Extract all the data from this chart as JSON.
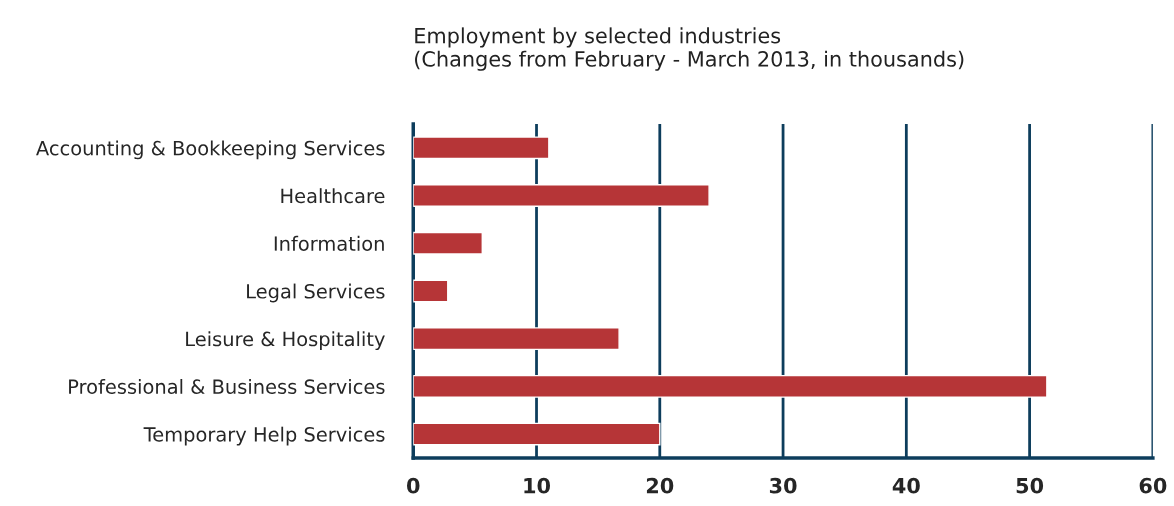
{
  "chart_data": {
    "type": "bar",
    "orientation": "horizontal",
    "title": "Employment by selected industries\n(Changes from February - March 2013, in thousands)",
    "categories": [
      "Accounting & Bookkeeping Services",
      "Healthcare",
      "Information",
      "Legal Services",
      "Leisure & Hospitality",
      "Professional & Business Services",
      "Temporary Help Services"
    ],
    "values": [
      11,
      24,
      5.6,
      2.8,
      16.7,
      51.4,
      20
    ],
    "color": "#b63537",
    "xlim": [
      0,
      60
    ],
    "xticks": [
      0,
      10,
      20,
      30,
      40,
      50,
      60
    ],
    "grid": "x"
  }
}
